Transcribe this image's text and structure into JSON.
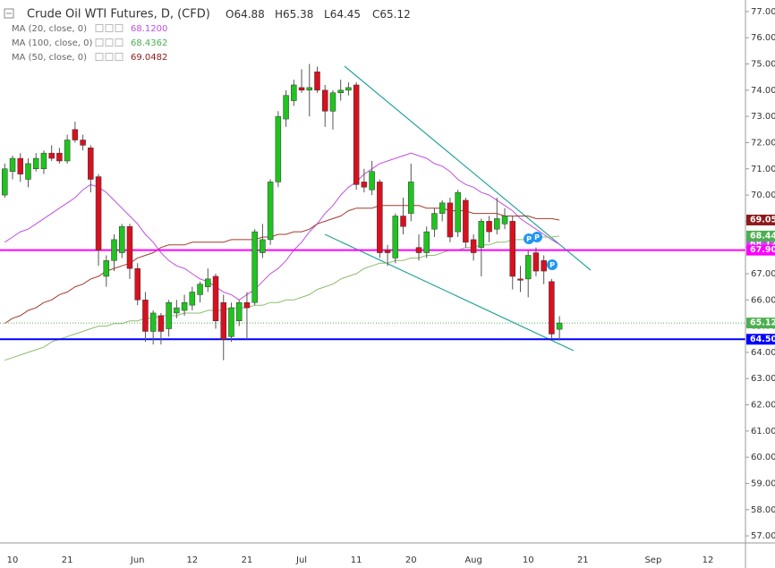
{
  "chart_data": {
    "type": "candlestick",
    "title": "Crude Oil WTI Futures, D, (CFD)",
    "ohlc": [
      {
        "key": "O",
        "value": 64.88
      },
      {
        "key": "H",
        "value": 65.38
      },
      {
        "key": "L",
        "value": 64.45
      },
      {
        "key": "C",
        "value": 65.12
      }
    ],
    "categories": [
      null,
      "10",
      null,
      null,
      null,
      null,
      null,
      null,
      "21",
      null,
      null,
      null,
      null,
      null,
      null,
      null,
      null,
      "Jun",
      null,
      null,
      null,
      null,
      null,
      null,
      "12",
      null,
      null,
      null,
      null,
      null,
      null,
      "21",
      null,
      null,
      null,
      null,
      null,
      null,
      "Jul",
      null,
      null,
      null,
      null,
      null,
      null,
      "11",
      null,
      null,
      null,
      null,
      null,
      null,
      "20",
      null,
      null,
      null,
      null,
      null,
      null,
      null,
      "Aug",
      null,
      null,
      null,
      null,
      null,
      null,
      "10",
      null,
      null,
      null,
      null,
      null,
      null,
      "21",
      null,
      null,
      null,
      null,
      null,
      null,
      null,
      null,
      "Sep",
      null,
      null,
      null,
      null,
      null,
      null,
      "12"
    ],
    "open": [
      70.0,
      70.9,
      71.4,
      70.6,
      71.0,
      71.0,
      71.6,
      71.6,
      71.3,
      72.5,
      72.1,
      71.8,
      70.7,
      66.9,
      67.5,
      67.8,
      68.8,
      67.2,
      66.0,
      64.8,
      65.4,
      64.9,
      65.5,
      65.6,
      65.8,
      66.2,
      66.5,
      66.9,
      65.9,
      64.6,
      65.2,
      65.9,
      65.9,
      67.8,
      68.3,
      70.5,
      72.9,
      73.6,
      74.1,
      74.0,
      74.7,
      74.0,
      73.2,
      73.9,
      74.0,
      74.2,
      70.5,
      70.2,
      70.5,
      67.9,
      67.6,
      69.2,
      69.3,
      68.0,
      67.8,
      68.7,
      69.3,
      69.7,
      68.6,
      69.8,
      68.3,
      68.0,
      69.0,
      68.7,
      68.9,
      69.0,
      66.8,
      66.8,
      67.8,
      67.5,
      66.7,
      64.88,
      null,
      null,
      null,
      null,
      null,
      null,
      null,
      null,
      null,
      null,
      null,
      null,
      null,
      null,
      null,
      null,
      null,
      null,
      null
    ],
    "high": [
      71.2,
      71.5,
      71.6,
      71.4,
      71.6,
      71.7,
      71.9,
      71.8,
      72.3,
      72.8,
      72.3,
      71.9,
      70.8,
      67.7,
      68.5,
      68.9,
      68.9,
      67.4,
      66.3,
      65.6,
      65.5,
      66.0,
      66.0,
      66.2,
      66.5,
      66.7,
      67.2,
      67.0,
      66.2,
      65.9,
      66.0,
      66.3,
      68.7,
      68.9,
      70.6,
      73.2,
      74.0,
      74.4,
      74.8,
      75.0,
      74.9,
      74.2,
      74.0,
      74.4,
      74.3,
      74.3,
      71.0,
      71.3,
      70.6,
      68.1,
      69.3,
      69.9,
      71.2,
      68.5,
      68.8,
      69.5,
      69.8,
      69.9,
      70.2,
      69.9,
      68.5,
      69.1,
      69.2,
      69.9,
      69.5,
      69.2,
      67.3,
      67.9,
      68.0,
      67.7,
      66.8,
      65.38,
      null,
      null,
      null,
      null,
      null,
      null,
      null,
      null,
      null,
      null,
      null,
      null,
      null,
      null,
      null,
      null,
      null,
      null,
      null
    ],
    "low": [
      69.9,
      70.6,
      70.5,
      70.3,
      70.9,
      70.8,
      71.3,
      71.2,
      71.2,
      72.0,
      71.7,
      70.1,
      67.3,
      66.5,
      67.1,
      67.6,
      66.8,
      65.8,
      64.4,
      64.3,
      64.3,
      64.6,
      65.3,
      65.4,
      65.6,
      65.9,
      66.3,
      64.9,
      63.7,
      64.4,
      65.0,
      64.5,
      65.8,
      67.6,
      68.1,
      70.3,
      72.6,
      73.4,
      73.9,
      73.0,
      73.9,
      72.6,
      72.5,
      73.6,
      73.8,
      70.2,
      70.1,
      70.0,
      67.6,
      67.3,
      67.4,
      68.5,
      69.0,
      67.5,
      67.6,
      68.4,
      69.0,
      68.2,
      68.4,
      68.0,
      67.5,
      66.9,
      68.2,
      68.5,
      68.7,
      66.4,
      66.3,
      66.1,
      66.9,
      66.6,
      64.5,
      64.45,
      null,
      null,
      null,
      null,
      null,
      null,
      null,
      null,
      null,
      null,
      null,
      null,
      null,
      null,
      null,
      null,
      null,
      null,
      null
    ],
    "close": [
      71.0,
      71.4,
      70.8,
      71.2,
      71.4,
      71.6,
      71.4,
      71.3,
      72.1,
      72.1,
      71.9,
      70.6,
      67.9,
      67.5,
      68.3,
      68.8,
      67.2,
      66.0,
      64.8,
      65.5,
      64.8,
      65.9,
      65.7,
      65.9,
      66.3,
      66.6,
      66.8,
      65.2,
      64.5,
      65.7,
      65.9,
      65.7,
      68.6,
      68.3,
      70.5,
      73.0,
      73.8,
      74.2,
      74.0,
      74.1,
      74.0,
      73.2,
      73.9,
      74.0,
      74.1,
      70.4,
      70.3,
      70.9,
      67.8,
      67.8,
      69.2,
      68.8,
      70.5,
      67.8,
      68.6,
      69.3,
      69.7,
      68.4,
      70.1,
      68.2,
      67.8,
      69.0,
      68.6,
      69.1,
      69.2,
      66.9,
      66.75,
      67.7,
      67.1,
      67.1,
      64.7,
      65.12,
      null,
      null,
      null,
      null,
      null,
      null,
      null,
      null,
      null,
      null,
      null,
      null,
      null,
      null,
      null,
      null,
      null,
      null,
      null
    ],
    "up_color": "#1fc41f",
    "down_color": "#d8101f",
    "wick_color": "#555555",
    "series": [
      {
        "name": "MA (20, close, 0)",
        "value_label": "68.1200",
        "axis_label": "68.12",
        "color": "#c04fdf",
        "values": [
          68.2,
          68.4,
          68.6,
          68.7,
          68.9,
          69.1,
          69.3,
          69.5,
          69.7,
          69.9,
          70.2,
          70.4,
          70.3,
          70.1,
          69.8,
          69.5,
          69.2,
          68.9,
          68.5,
          68.2,
          67.8,
          67.5,
          67.3,
          67.2,
          67.0,
          66.8,
          66.7,
          66.5,
          66.3,
          66.2,
          66.0,
          66.2,
          66.4,
          66.7,
          67.0,
          67.2,
          67.5,
          67.9,
          68.2,
          68.6,
          68.9,
          69.3,
          69.6,
          70.0,
          70.3,
          70.5,
          70.8,
          71.0,
          71.2,
          71.3,
          71.4,
          71.5,
          71.6,
          71.5,
          71.4,
          71.2,
          71.1,
          70.9,
          70.6,
          70.4,
          70.3,
          70.1,
          70.0,
          69.8,
          69.6,
          69.4,
          69.1,
          68.9,
          68.7,
          68.5,
          68.3,
          68.12,
          null,
          null,
          null,
          null,
          null,
          null,
          null,
          null,
          null,
          null,
          null,
          null,
          null,
          null,
          null,
          null,
          null,
          null,
          null
        ]
      },
      {
        "name": "MA (100, close, 0)",
        "value_label": "68.4362",
        "axis_label": "68.44",
        "color": "#8dbd6e",
        "label_color": "#4caf50",
        "values": [
          63.7,
          63.8,
          63.9,
          64.0,
          64.1,
          64.2,
          64.4,
          64.5,
          64.6,
          64.7,
          64.8,
          64.9,
          65.0,
          65.0,
          65.1,
          65.1,
          65.2,
          65.2,
          65.3,
          65.3,
          65.4,
          65.4,
          65.4,
          65.5,
          65.5,
          65.5,
          65.6,
          65.6,
          65.6,
          65.7,
          65.7,
          65.7,
          65.8,
          65.8,
          65.9,
          65.9,
          66.0,
          66.0,
          66.1,
          66.2,
          66.4,
          66.5,
          66.6,
          66.8,
          66.9,
          67.0,
          67.2,
          67.3,
          67.4,
          67.4,
          67.5,
          67.5,
          67.6,
          67.6,
          67.7,
          67.7,
          67.8,
          67.9,
          67.9,
          68.0,
          68.0,
          68.1,
          68.1,
          68.2,
          68.2,
          68.3,
          68.3,
          68.3,
          68.4,
          68.4,
          68.4,
          68.4362,
          null,
          null,
          null,
          null,
          null,
          null,
          null,
          null,
          null,
          null,
          null,
          null,
          null,
          null,
          null,
          null,
          null,
          null,
          null
        ]
      },
      {
        "name": "MA (50, close, 0)",
        "value_label": "69.0482",
        "axis_label": "69.05",
        "color": "#a23b2c",
        "label_color": "#8b1a1a",
        "values": [
          65.1,
          65.3,
          65.4,
          65.6,
          65.7,
          65.9,
          66.0,
          66.2,
          66.3,
          66.5,
          66.6,
          66.8,
          66.9,
          67.1,
          67.2,
          67.3,
          67.4,
          67.6,
          67.7,
          67.8,
          68.0,
          68.1,
          68.1,
          68.1,
          68.2,
          68.2,
          68.2,
          68.2,
          68.2,
          68.3,
          68.3,
          68.3,
          68.3,
          68.4,
          68.4,
          68.5,
          68.5,
          68.6,
          68.6,
          68.7,
          68.9,
          69.0,
          69.1,
          69.2,
          69.4,
          69.5,
          69.5,
          69.5,
          69.6,
          69.6,
          69.6,
          69.6,
          69.6,
          69.6,
          69.5,
          69.5,
          69.5,
          69.4,
          69.4,
          69.4,
          69.3,
          69.3,
          69.3,
          69.3,
          69.2,
          69.2,
          69.2,
          69.2,
          69.1,
          69.1,
          69.1,
          69.0482,
          null,
          null,
          null,
          null,
          null,
          null,
          null,
          null,
          null,
          null,
          null,
          null,
          null,
          null,
          null,
          null,
          null,
          null,
          null
        ]
      }
    ],
    "hlines": [
      {
        "value": 67.9,
        "label": "67.90",
        "color": "#ff00ff"
      },
      {
        "value": 64.5,
        "label": "64.50",
        "color": "#0000ff"
      }
    ],
    "last_price": {
      "value": 65.12,
      "label": "65.12",
      "color": "#4caf50"
    },
    "markers": [
      "P",
      "P",
      "P"
    ],
    "ylim": [
      56.73,
      77.44
    ],
    "yticks": [
      {
        "value": 77,
        "label": "77.00"
      },
      {
        "value": 76,
        "label": "76.00"
      },
      {
        "value": 75,
        "label": "75.00"
      },
      {
        "value": 74,
        "label": "74.00"
      },
      {
        "value": 73,
        "label": "73.00"
      },
      {
        "value": 72,
        "label": "72.00"
      },
      {
        "value": 71,
        "label": "71.00"
      },
      {
        "value": 70,
        "label": "70.00"
      },
      {
        "value": 69,
        "label": "69.00"
      },
      {
        "value": 68,
        "label": "68.00"
      },
      {
        "value": 67,
        "label": "67.00"
      },
      {
        "value": 66,
        "label": "66.00"
      },
      {
        "value": 65,
        "label": "65.00"
      },
      {
        "value": 64,
        "label": "64.00"
      },
      {
        "value": 63,
        "label": "63.00"
      },
      {
        "value": 62,
        "label": "62.00"
      },
      {
        "value": 61,
        "label": "61.00"
      },
      {
        "value": 60,
        "label": "60.00"
      },
      {
        "value": 59,
        "label": "59.00"
      },
      {
        "value": 58,
        "label": "58.00"
      },
      {
        "value": 57,
        "label": "57.00"
      }
    ],
    "grid": false
  }
}
